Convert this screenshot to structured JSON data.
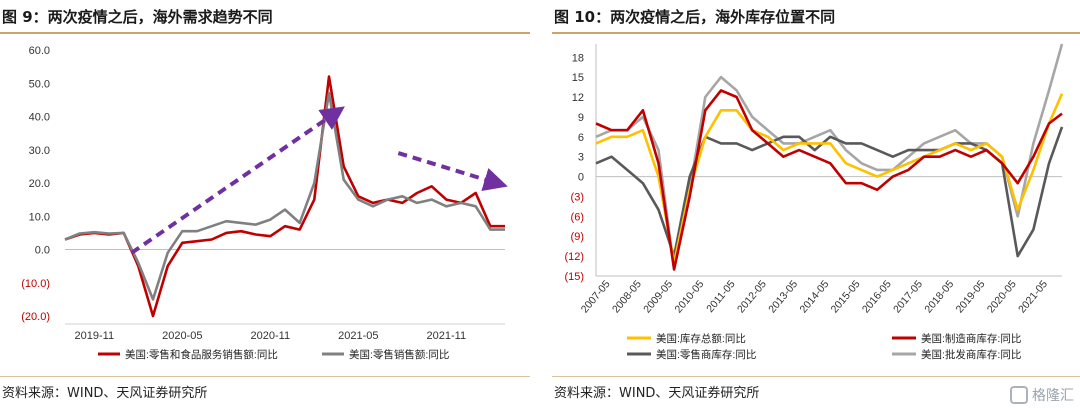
{
  "left": {
    "title": "图 9：两次疫情之后，海外需求趋势不同",
    "source": "资料来源：WIND、天风证券研究所",
    "chart_data": {
      "type": "line",
      "x_ticks": [
        "2019-11",
        "2020-05",
        "2020-11",
        "2021-05",
        "2021-11"
      ],
      "y_ticks": [
        "60.0",
        "50.0",
        "40.0",
        "30.0",
        "20.0",
        "10.0",
        "0.0",
        "(10.0)",
        "(20.0)"
      ],
      "ylim": [
        -20,
        60
      ],
      "x": [
        "2019-09",
        "2019-10",
        "2019-11",
        "2019-12",
        "2020-01",
        "2020-02",
        "2020-03",
        "2020-04",
        "2020-05",
        "2020-06",
        "2020-07",
        "2020-08",
        "2020-09",
        "2020-10",
        "2020-11",
        "2020-12",
        "2021-01",
        "2021-02",
        "2021-03",
        "2021-04",
        "2021-05",
        "2021-06",
        "2021-07",
        "2021-08",
        "2021-09",
        "2021-10",
        "2021-11",
        "2021-12",
        "2022-01",
        "2022-02",
        "2022-03"
      ],
      "series": [
        {
          "name": "美国:零售和食品服务销售额:同比",
          "color": "#c00000",
          "values": [
            3,
            4.5,
            5,
            4.5,
            5,
            -5,
            -20,
            -5,
            2,
            2.5,
            3,
            5,
            5.5,
            4.5,
            4,
            7,
            6,
            15,
            52,
            25,
            16,
            14,
            15,
            14,
            17,
            19,
            15,
            14,
            17,
            7,
            7
          ]
        },
        {
          "name": "美国:零售销售额:同比",
          "color": "#808080",
          "values": [
            3,
            4.8,
            5.2,
            4.8,
            5,
            -4,
            -15,
            -1,
            5.5,
            5.5,
            7,
            8.5,
            8,
            7.5,
            9,
            12,
            8,
            20,
            47,
            21,
            15,
            13,
            15,
            16,
            14,
            15,
            13,
            14,
            13,
            6,
            6
          ]
        }
      ],
      "arrows": [
        {
          "color": "#7030a0",
          "direction": "up"
        },
        {
          "color": "#7030a0",
          "direction": "down"
        }
      ]
    }
  },
  "right": {
    "title": "图 10：两次疫情之后，海外库存位置不同",
    "source": "资料来源：WIND、天风证券研究所",
    "chart_data": {
      "type": "line",
      "x_ticks": [
        "2007-05",
        "2008-05",
        "2009-05",
        "2010-05",
        "2011-05",
        "2012-05",
        "2013-05",
        "2014-05",
        "2015-05",
        "2016-05",
        "2017-05",
        "2018-05",
        "2019-05",
        "2020-05",
        "2021-05"
      ],
      "y_ticks": [
        "18",
        "15",
        "12",
        "9",
        "6",
        "3",
        "0",
        "(3)",
        "(6)",
        "(9)",
        "(12)",
        "(15)"
      ],
      "ylim": [
        -15,
        20
      ],
      "x": [
        "2007-01",
        "2007-07",
        "2008-01",
        "2008-07",
        "2009-01",
        "2009-07",
        "2010-01",
        "2010-07",
        "2011-01",
        "2011-07",
        "2012-01",
        "2012-07",
        "2013-01",
        "2013-07",
        "2014-01",
        "2014-07",
        "2015-01",
        "2015-07",
        "2016-01",
        "2016-07",
        "2017-01",
        "2017-07",
        "2018-01",
        "2018-07",
        "2019-01",
        "2019-07",
        "2020-01",
        "2020-07",
        "2021-01",
        "2021-07",
        "2021-12"
      ],
      "series": [
        {
          "name": "美国:库存总额:同比",
          "color": "#ffc000",
          "values": [
            5,
            6,
            6,
            7,
            0,
            -13,
            -2,
            6,
            10,
            10,
            7,
            6,
            4,
            5,
            5,
            5,
            2,
            1,
            0,
            1,
            2,
            3,
            4,
            5,
            4,
            5,
            3,
            -5,
            1,
            8,
            12.5
          ]
        },
        {
          "name": "美国:制造商库存:同比",
          "color": "#c00000",
          "values": [
            8,
            7,
            7,
            10,
            2,
            -14,
            -3,
            10,
            13,
            12,
            7,
            5,
            3,
            4,
            3,
            2,
            -1,
            -1,
            -2,
            0,
            1,
            3,
            3,
            4,
            3,
            4,
            2,
            -1,
            3,
            8,
            9.5
          ]
        },
        {
          "name": "美国:零售商库存:同比",
          "color": "#595959",
          "values": [
            2,
            3,
            1,
            -1,
            -5,
            -12,
            0,
            6,
            5,
            5,
            4,
            5,
            6,
            6,
            4,
            6,
            5,
            5,
            4,
            3,
            4,
            4,
            4,
            5,
            5,
            4,
            2,
            -12,
            -8,
            2,
            7.5
          ]
        },
        {
          "name": "美国:批发商库存:同比",
          "color": "#a6a6a6",
          "values": [
            6,
            7,
            7,
            9,
            4,
            -14,
            -2,
            12,
            15,
            13,
            9,
            7,
            5,
            5,
            6,
            7,
            4,
            2,
            1,
            1,
            3,
            5,
            6,
            7,
            5,
            5,
            3,
            -6,
            5,
            13,
            20
          ]
        }
      ]
    }
  },
  "watermark": {
    "text": "格隆汇"
  }
}
